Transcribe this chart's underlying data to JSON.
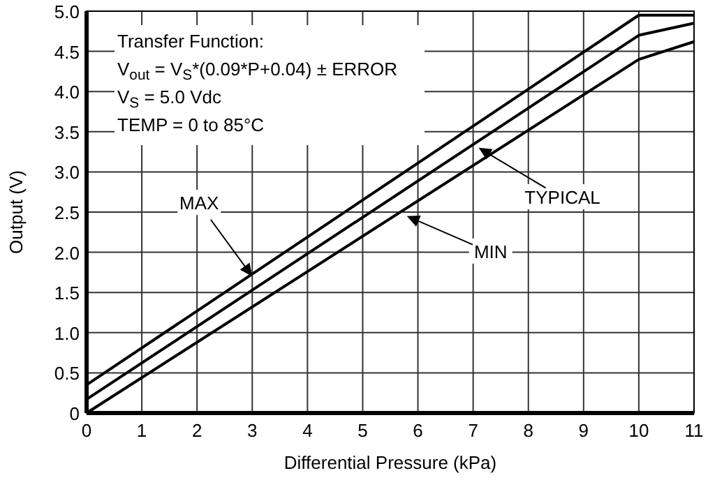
{
  "chart_data": {
    "type": "line",
    "xlabel": "Differential Pressure (kPa)",
    "ylabel": "Output (V)",
    "x": [
      0,
      10,
      11
    ],
    "series": [
      {
        "color": "#000000",
        "values": [
          0.35,
          4.95,
          4.95
        ]
      },
      {
        "color": "#000000",
        "values": [
          0.17,
          4.7,
          4.85
        ]
      },
      {
        "color": "#000000",
        "values": [
          0,
          4.4,
          4.62
        ]
      }
    ],
    "xlim": [
      0,
      11
    ],
    "xticks": [
      0,
      1,
      2,
      3,
      4,
      5,
      6,
      7,
      8,
      9,
      10,
      11
    ],
    "ylim": [
      0,
      5
    ],
    "yticks": [
      0,
      {
        "value": 0.5,
        "label": "0.5"
      },
      {
        "value": 1,
        "label": "1.0"
      },
      {
        "value": 1.5,
        "label": "1.5"
      },
      {
        "value": 2,
        "label": "2.0"
      },
      {
        "value": 2.5,
        "label": "2.5"
      },
      {
        "value": 3,
        "label": "3.0"
      },
      {
        "value": 3.5,
        "label": "3.5"
      },
      {
        "value": 4,
        "label": "4.0"
      },
      {
        "value": 4.5,
        "label": "4.5"
      },
      {
        "value": 5,
        "label": "5.0"
      }
    ],
    "grid": true,
    "marker": "none",
    "line_style": "solid",
    "annotations": [
      "Transfer Function:",
      "V$_{out}$ = V$_{S}$*(0.09*P+0.04) ± ERROR",
      "V$_{S}$ = 5.0 Vdc",
      "TEMP = 0 to 85°C",
      {
        "text": "MAX",
        "x": 3,
        "y": 1.7
      },
      {
        "text": "TYPICAL",
        "x": 7.1,
        "y": 3.3
      },
      {
        "text": "MIN",
        "x": 5.8,
        "y": 2.45
      }
    ]
  }
}
